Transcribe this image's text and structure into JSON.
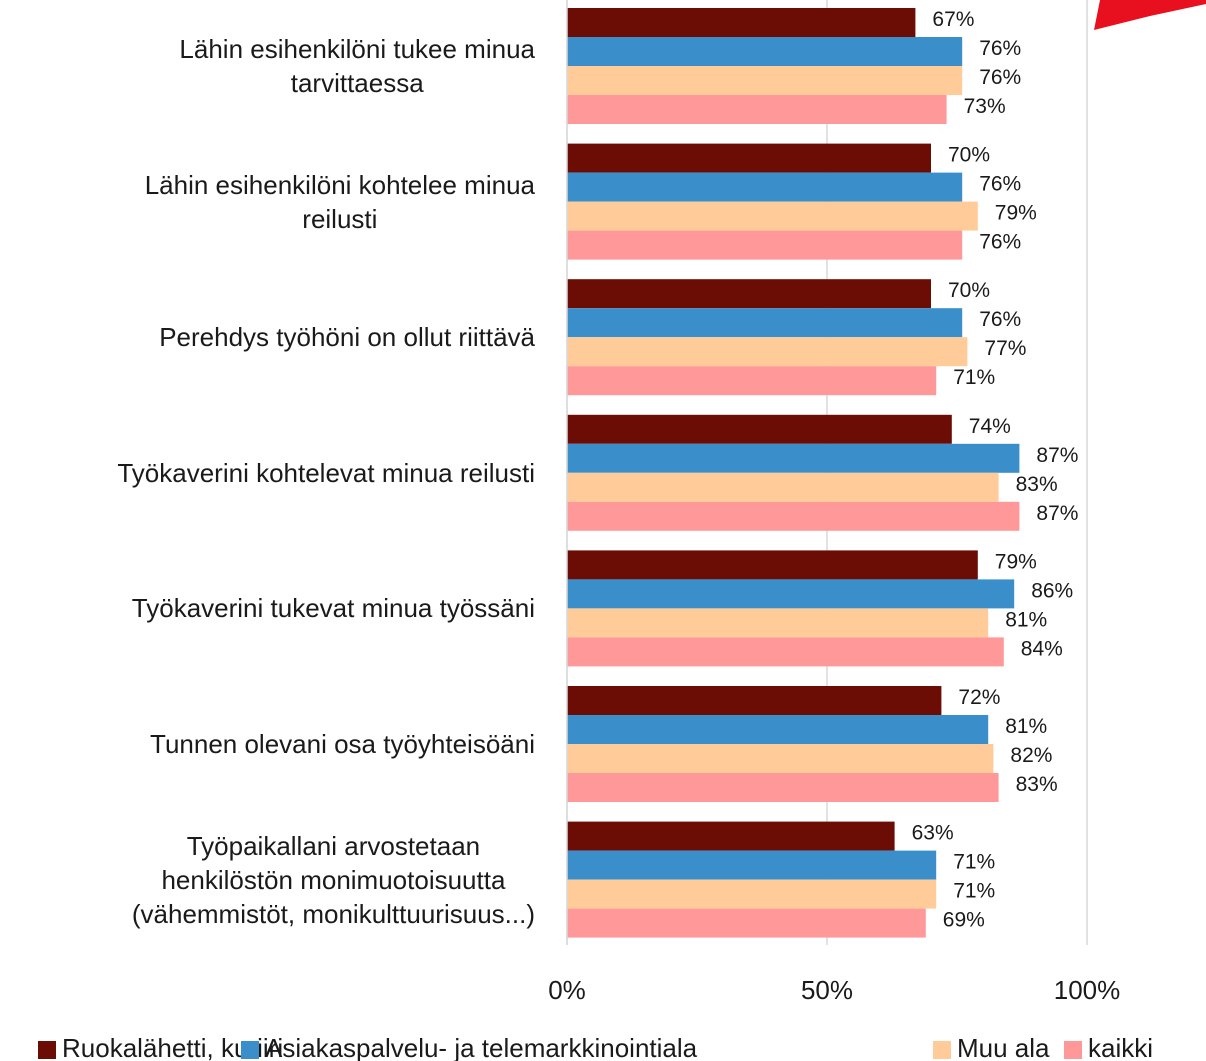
{
  "chart_data": {
    "type": "hbar",
    "categories": [
      "Lähin esihenkilöni tukee minua\ntarvittaessa",
      "Lähin esihenkilöni kohtelee minua\nreilusti",
      "Perehdys työhöni on ollut riittävä",
      "Työkaverini kohtelevat minua reilusti",
      "Työkaverini tukevat minua työssäni",
      "Tunnen olevani osa työyhteisöäni",
      "Työpaikallani arvostetaan\nhenkilöstön monimuotoisuutta\n(vähemmistöt, monikulttuurisuus...)"
    ],
    "series": [
      {
        "name": "Ruokalähetti, kuriiri",
        "color": "#6b0d05",
        "values": [
          67,
          70,
          70,
          74,
          79,
          72,
          63
        ],
        "value_labels": [
          "67%",
          "70%",
          "70%",
          "74%",
          "79%",
          "72%",
          "63%"
        ]
      },
      {
        "name": "Asiakaspalvelu- ja telemarkkinointiala",
        "color": "#3a8fcb",
        "values": [
          76,
          76,
          76,
          87,
          86,
          81,
          71
        ],
        "value_labels": [
          "76%",
          "76%",
          "76%",
          "87%",
          "86%",
          "81%",
          "71%"
        ]
      },
      {
        "name": "Muu ala",
        "color": "#ffcc99",
        "values": [
          76,
          79,
          77,
          83,
          81,
          82,
          71
        ],
        "value_labels": [
          "76%",
          "79%",
          "77%",
          "83%",
          "81%",
          "82%",
          "71%"
        ]
      },
      {
        "name": "kaikki",
        "color": "#ff9999",
        "values": [
          73,
          76,
          71,
          87,
          84,
          83,
          69
        ],
        "value_labels": [
          "73%",
          "76%",
          "71%",
          "87%",
          "84%",
          "83%",
          "69%"
        ]
      }
    ],
    "xlim": [
      0,
      100
    ],
    "xticks": [
      {
        "value": 0,
        "label": "0%"
      },
      {
        "value": 50,
        "label": "50%"
      },
      {
        "value": 100,
        "label": "100%"
      }
    ],
    "grid": true,
    "legend": "bottom"
  }
}
